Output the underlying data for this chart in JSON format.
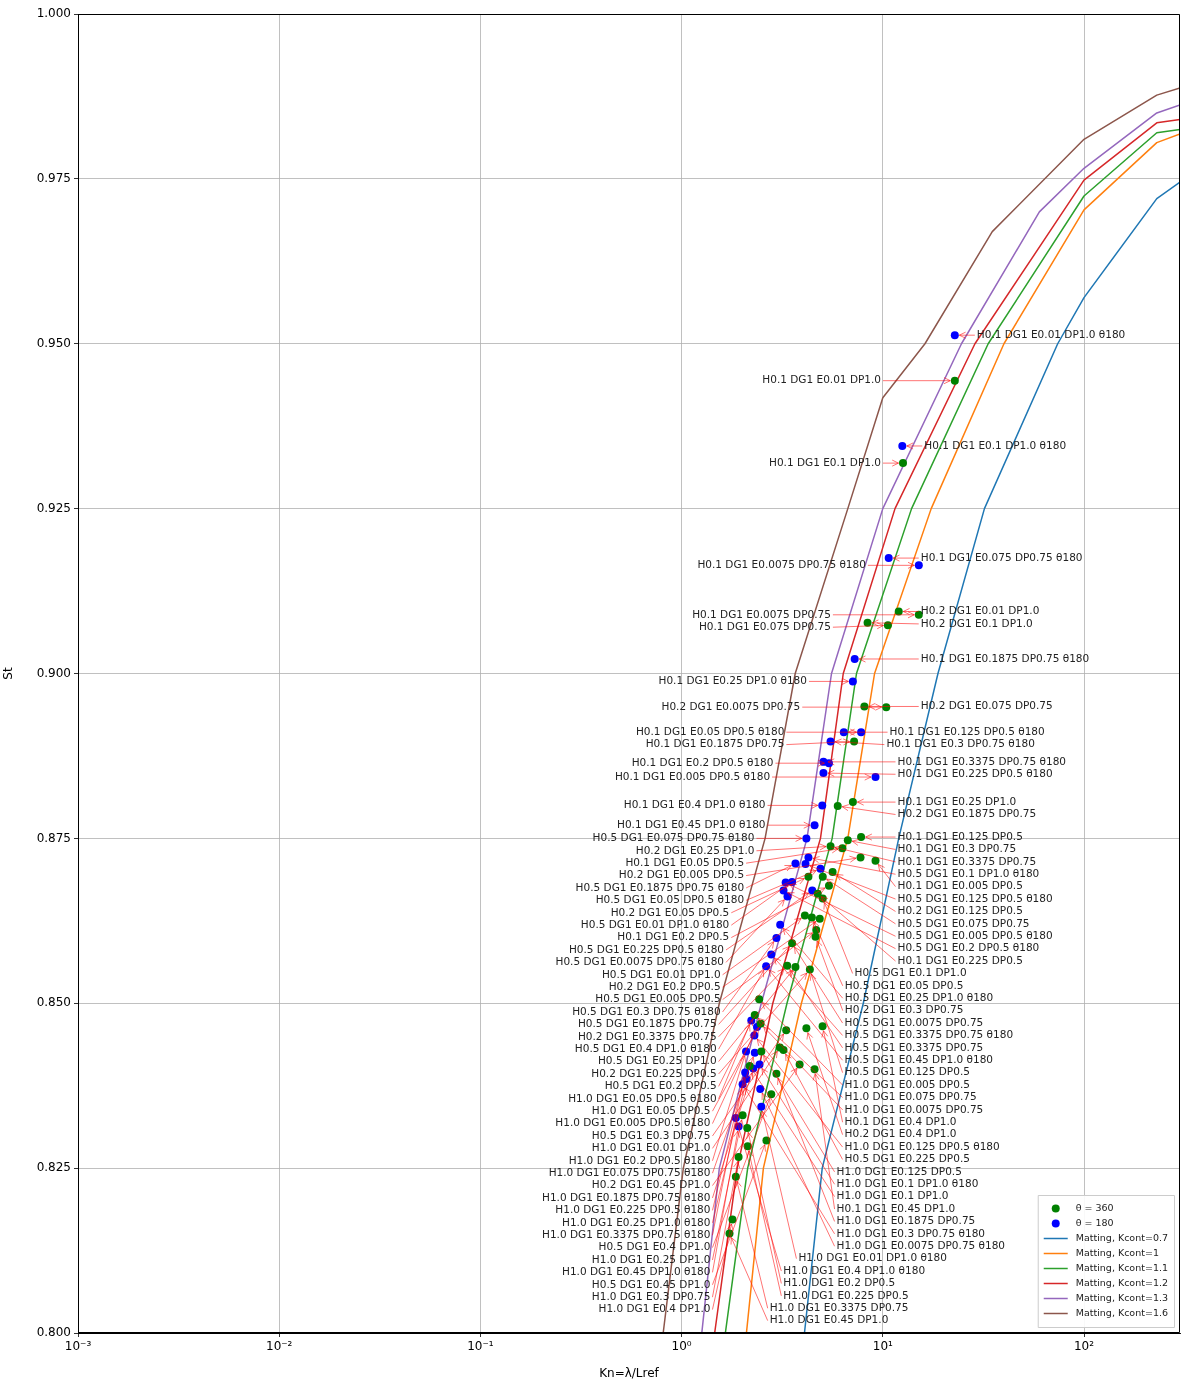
{
  "chart_data": {
    "type": "scatter",
    "xlabel": "Kn=λ/Lref",
    "ylabel": "St",
    "log": "x",
    "grid": true,
    "legend": "bottom right",
    "xlim": [
      0.001,
      300
    ],
    "ylim": [
      0.8,
      1.0
    ],
    "xticks": [
      {
        "value": 0.001,
        "label": "10⁻³"
      },
      {
        "value": 0.01,
        "label": "10⁻²"
      },
      {
        "value": 0.1,
        "label": "10⁻¹"
      },
      {
        "value": 1,
        "label": "10⁰"
      },
      {
        "value": 10,
        "label": "10¹"
      },
      {
        "value": 100,
        "label": "10²"
      }
    ],
    "yticks": [
      {
        "value": 0.8,
        "label": "0.800"
      },
      {
        "value": 0.825,
        "label": "0.825"
      },
      {
        "value": 0.85,
        "label": "0.850"
      },
      {
        "value": 0.875,
        "label": "0.875"
      },
      {
        "value": 0.9,
        "label": "0.900"
      },
      {
        "value": 0.925,
        "label": "0.925"
      },
      {
        "value": 0.95,
        "label": "0.950"
      },
      {
        "value": 0.975,
        "label": "0.975"
      },
      {
        "value": 1.0,
        "label": "1.000"
      }
    ],
    "series": [
      {
        "name": "θ = 360",
        "marker": "circle",
        "color": "#008000",
        "x": [
          22.8,
          12.6,
          12.0,
          15.1,
          8.4,
          10.6,
          8.1,
          10.4,
          7.2,
          5.97,
          7.1,
          5.5,
          7.8,
          6.7,
          6.3,
          7.75,
          9.2,
          5.63,
          4.27,
          5.03,
          5.4,
          4.75,
          5.03,
          4.1,
          4.44,
          4.86,
          4.67,
          4.63,
          3.54,
          3.35,
          3.68,
          4.34,
          2.43,
          2.31,
          2.47,
          3.31,
          4.17,
          5.02,
          2.49,
          3.08,
          3.21,
          3.86,
          4.58,
          2.18,
          2.96,
          2.79,
          2.01,
          2.12,
          2.64,
          2.13,
          1.92,
          1.86,
          1.79,
          1.73
        ],
        "values": [
          0.9444,
          0.9319,
          0.9094,
          0.9089,
          0.9077,
          0.9073,
          0.895,
          0.8949,
          0.8897,
          0.8799,
          0.8805,
          0.8738,
          0.8752,
          0.8747,
          0.8735,
          0.8721,
          0.8716,
          0.8699,
          0.8692,
          0.8692,
          0.8678,
          0.8666,
          0.8659,
          0.8633,
          0.863,
          0.8628,
          0.8611,
          0.8601,
          0.8591,
          0.8557,
          0.8555,
          0.8551,
          0.8506,
          0.8482,
          0.8469,
          0.8459,
          0.8462,
          0.8465,
          0.8427,
          0.8433,
          0.8429,
          0.8407,
          0.84,
          0.8405,
          0.8393,
          0.8362,
          0.833,
          0.8311,
          0.8292,
          0.8283,
          0.8267,
          0.8237,
          0.8172,
          0.8151
        ]
      },
      {
        "name": "θ = 180",
        "marker": "circle",
        "color": "#0000ff",
        "x": [
          22.8,
          12.5,
          10.7,
          15.1,
          7.25,
          7.1,
          6.4,
          7.8,
          5.5,
          5.07,
          5.4,
          5.07,
          9.2,
          5.0,
          4.58,
          4.17,
          4.27,
          3.68,
          4.13,
          4.9,
          3.54,
          3.29,
          3.21,
          3.36,
          4.46,
          3.09,
          2.96,
          2.79,
          2.63,
          2.22,
          2.37,
          2.3,
          2.09,
          2.31,
          2.44,
          2.27,
          2.07,
          2.1,
          2.01,
          2.46,
          2.49,
          1.86,
          1.92
        ],
        "values": [
          0.9513,
          0.9345,
          0.9175,
          0.9164,
          0.9022,
          0.8988,
          0.8911,
          0.8911,
          0.8897,
          0.8866,
          0.8864,
          0.8849,
          0.8843,
          0.88,
          0.877,
          0.875,
          0.8721,
          0.8712,
          0.8711,
          0.8704,
          0.8684,
          0.8683,
          0.8671,
          0.8662,
          0.8671,
          0.8619,
          0.8599,
          0.8574,
          0.8556,
          0.8474,
          0.8464,
          0.8451,
          0.8427,
          0.8425,
          0.8407,
          0.8401,
          0.8395,
          0.8385,
          0.8377,
          0.837,
          0.8343,
          0.8326,
          0.8313
        ]
      },
      {
        "name": "Matting, Kcont=0.7",
        "type": "line",
        "color": "#1f77b4",
        "x": [
          4.08,
          5.0,
          8.0,
          12,
          18.8,
          32,
          74,
          100,
          230,
          300
        ],
        "values": [
          0.8,
          0.825,
          0.85,
          0.875,
          0.9,
          0.925,
          0.95,
          0.957,
          0.972,
          0.9745
        ]
      },
      {
        "name": "Matting, Kcont=1",
        "type": "line",
        "color": "#ff7f0e",
        "x": [
          2.1,
          2.55,
          3.94,
          6.7,
          9.1,
          17.4,
          40,
          100,
          230,
          300
        ],
        "values": [
          0.8,
          0.825,
          0.85,
          0.875,
          0.9,
          0.925,
          0.95,
          0.9703,
          0.9805,
          0.9818
        ]
      },
      {
        "name": "Matting, Kcont=1.1",
        "type": "line",
        "color": "#2ca02c",
        "x": [
          1.65,
          2.13,
          3.34,
          5.6,
          7.4,
          13.9,
          33.4,
          100,
          230,
          300
        ],
        "values": [
          0.8,
          0.825,
          0.85,
          0.875,
          0.9,
          0.925,
          0.95,
          0.9724,
          0.982,
          0.9825
        ]
      },
      {
        "name": "Matting, Kcont=1.2",
        "type": "line",
        "color": "#d62728",
        "x": [
          1.46,
          1.89,
          2.84,
          4.9,
          6.36,
          11.5,
          28.7,
          100,
          230,
          300
        ],
        "values": [
          0.8,
          0.825,
          0.85,
          0.875,
          0.9,
          0.925,
          0.95,
          0.9748,
          0.9835,
          0.984
        ]
      },
      {
        "name": "Matting, Kcont=1.3",
        "type": "line",
        "color": "#9467bd",
        "x": [
          1.26,
          1.54,
          2.49,
          4.2,
          5.56,
          10,
          24.6,
          60,
          100,
          230,
          300
        ],
        "values": [
          0.8,
          0.825,
          0.85,
          0.875,
          0.9,
          0.925,
          0.95,
          0.97,
          0.9766,
          0.985,
          0.9862
        ]
      },
      {
        "name": "Matting, Kcont=1.6",
        "type": "line",
        "color": "#8c564b",
        "x": [
          0.81,
          1.02,
          1.54,
          2.6,
          3.67,
          6.7,
          10,
          16.2,
          35,
          100,
          230,
          300
        ],
        "values": [
          0.8,
          0.825,
          0.85,
          0.875,
          0.9,
          0.925,
          0.9418,
          0.95,
          0.967,
          0.981,
          0.9877,
          0.9888
        ]
      }
    ],
    "annotations": [
      {
        "text": "H0.1 DG1 E0.01 DP1.0 θ180",
        "x": 22.8,
        "y": 0.9513
      },
      {
        "text": "H0.1 DG1 E0.01 DP1.0",
        "x": 22.8,
        "y": 0.9444
      },
      {
        "text": "H0.1 DG1 E0.1 DP1.0 θ180",
        "x": 12.5,
        "y": 0.9345
      },
      {
        "text": "H0.1 DG1 E0.1 DP1.0",
        "x": 12.6,
        "y": 0.9319
      },
      {
        "text": "H0.1 DG1 E0.075 DP0.75 θ180",
        "x": 10.7,
        "y": 0.9175
      },
      {
        "text": "H0.1 DG1 E0.0075 DP0.75 θ180",
        "x": 15.1,
        "y": 0.9164
      },
      {
        "text": "H0.2 DG1 E0.01 DP1.0",
        "x": 12.0,
        "y": 0.9094
      },
      {
        "text": "H0.1 DG1 E0.0075 DP0.75",
        "x": 15.1,
        "y": 0.9089
      },
      {
        "text": "H0.2 DG1 E0.1 DP1.0",
        "x": 8.4,
        "y": 0.9077
      },
      {
        "text": "H0.1 DG1 E0.075 DP0.75",
        "x": 10.6,
        "y": 0.9073
      },
      {
        "text": "H0.1 DG1 E0.1875 DP0.75 θ180",
        "x": 7.25,
        "y": 0.9022
      },
      {
        "text": "H0.1 DG1 E0.25 DP1.0 θ180",
        "x": 7.1,
        "y": 0.8988
      },
      {
        "text": "H0.2 DG1 E0.075 DP0.75",
        "x": 8.1,
        "y": 0.895
      },
      {
        "text": "H0.2 DG1 E0.0075 DP0.75",
        "x": 10.4,
        "y": 0.8949
      },
      {
        "text": "H0.1 DG1 E0.125 DP0.5 θ180",
        "x": 6.4,
        "y": 0.8911
      },
      {
        "text": "H0.1 DG1 E0.05 DP0.5 θ180",
        "x": 7.8,
        "y": 0.8911
      },
      {
        "text": "H0.1 DG1 E0.3 DP0.75 θ180",
        "x": 5.5,
        "y": 0.8897
      },
      {
        "text": "H0.1 DG1 E0.1875 DP0.75",
        "x": 7.2,
        "y": 0.8897
      },
      {
        "text": "H0.1 DG1 E0.3375 DP0.75 θ180",
        "x": 5.07,
        "y": 0.8866
      },
      {
        "text": "H0.1 DG1 E0.2 DP0.5 θ180",
        "x": 5.4,
        "y": 0.8864
      },
      {
        "text": "H0.1 DG1 E0.225 DP0.5 θ180",
        "x": 5.07,
        "y": 0.8849
      },
      {
        "text": "H0.1 DG1 E0.005 DP0.5 θ180",
        "x": 9.2,
        "y": 0.8843
      },
      {
        "text": "H0.2 DG1 E0.1875 DP0.75",
        "x": 5.97,
        "y": 0.8799
      },
      {
        "text": "H0.1 DG1 E0.25 DP1.0",
        "x": 7.1,
        "y": 0.8805
      },
      {
        "text": "H0.1 DG1 E0.4 DP1.0 θ180",
        "x": 5.0,
        "y": 0.88
      },
      {
        "text": "H0.1 DG1 E0.45 DP1.0 θ180",
        "x": 4.58,
        "y": 0.877
      },
      {
        "text": "H0.2 DG1 E0.25 DP1.0",
        "x": 5.5,
        "y": 0.8738
      },
      {
        "text": "H0.1 DG1 E0.3 DP0.75",
        "x": 6.7,
        "y": 0.8747
      },
      {
        "text": "H0.1 DG1 E0.125 DP0.5",
        "x": 7.8,
        "y": 0.8752
      },
      {
        "text": "H0.5 DG1 E0.075 DP0.75 θ180",
        "x": 4.17,
        "y": 0.875
      },
      {
        "text": "H0.1 DG1 E0.05 DP0.5",
        "x": 6.3,
        "y": 0.8735
      },
      {
        "text": "H0.1 DG1 E0.3375 DP0.75",
        "x": 5.5,
        "y": 0.8738
      },
      {
        "text": "H0.2 DG1 E0.005 DP0.5",
        "x": 7.75,
        "y": 0.8721
      },
      {
        "text": "H0.1 DG1 E0.005 DP0.5",
        "x": 9.2,
        "y": 0.8716
      },
      {
        "text": "H0.5 DG1 E0.1 DP1.0 θ180",
        "x": 4.27,
        "y": 0.8721
      },
      {
        "text": "H0.5 DG1 E0.1875 DP0.75 θ180",
        "x": 3.68,
        "y": 0.8712
      },
      {
        "text": "H0.5 DG1 E0.125 DP0.5 θ180",
        "x": 4.13,
        "y": 0.8711
      },
      {
        "text": "H0.5 DG1 E0.05 DP0.5 θ180",
        "x": 4.9,
        "y": 0.8704
      },
      {
        "text": "H0.2 DG1 E0.125 DP0.5",
        "x": 5.63,
        "y": 0.8699
      },
      {
        "text": "H0.2 DG1 E0.05 DP0.5",
        "x": 4.27,
        "y": 0.8692
      },
      {
        "text": "H0.5 DG1 E0.075 DP0.75",
        "x": 5.03,
        "y": 0.8692
      },
      {
        "text": "H0.5 DG1 E0.01 DP1.0 θ180",
        "x": 3.54,
        "y": 0.8684
      },
      {
        "text": "H0.5 DG1 E0.005 DP0.5 θ180",
        "x": 3.29,
        "y": 0.8683
      },
      {
        "text": "H0.1 DG1 E0.2 DP0.5",
        "x": 5.4,
        "y": 0.8678
      },
      {
        "text": "H0.5 DG1 E0.2 DP0.5 θ180",
        "x": 3.21,
        "y": 0.8671
      },
      {
        "text": "H0.5 DG1 E0.225 DP0.5 θ180",
        "x": 4.46,
        "y": 0.8671
      },
      {
        "text": "H0.1 DG1 E0.225 DP0.5",
        "x": 4.75,
        "y": 0.8666
      },
      {
        "text": "H0.5 DG1 E0.0075 DP0.75 θ180",
        "x": 3.36,
        "y": 0.8662
      },
      {
        "text": "H0.5 DG1 E0.1 DP1.0",
        "x": 5.03,
        "y": 0.8659
      },
      {
        "text": "H0.5 DG1 E0.01 DP1.0",
        "x": 4.1,
        "y": 0.8633
      },
      {
        "text": "H0.5 DG1 E0.05 DP0.5",
        "x": 4.44,
        "y": 0.863
      },
      {
        "text": "H0.2 DG1 E0.2 DP0.5",
        "x": 4.86,
        "y": 0.8628
      },
      {
        "text": "H0.5 DG1 E0.25 DP1.0 θ180",
        "x": 3.09,
        "y": 0.8619
      },
      {
        "text": "H0.5 DG1 E0.005 DP0.5",
        "x": 4.67,
        "y": 0.8611
      },
      {
        "text": "H0.2 DG1 E0.3 DP0.75",
        "x": 4.63,
        "y": 0.8601
      },
      {
        "text": "H0.5 DG1 E0.3 DP0.75 θ180",
        "x": 2.96,
        "y": 0.8599
      },
      {
        "text": "H0.5 DG1 E0.0075 DP0.75",
        "x": 3.54,
        "y": 0.8591
      },
      {
        "text": "H0.5 DG1 E0.1875 DP0.75",
        "x": 3.54,
        "y": 0.8591
      },
      {
        "text": "H0.5 DG1 E0.3375 DP0.75 θ180",
        "x": 2.79,
        "y": 0.8574
      },
      {
        "text": "H0.2 DG1 E0.3375 DP0.75",
        "x": 3.35,
        "y": 0.8557
      },
      {
        "text": "H0.5 DG1 E0.3375 DP0.75",
        "x": 3.35,
        "y": 0.8557
      },
      {
        "text": "H0.5 DG1 E0.4 DP1.0 θ180",
        "x": 2.63,
        "y": 0.8556
      },
      {
        "text": "H0.5 DG1 E0.45 DP1.0 θ180",
        "x": 2.63,
        "y": 0.8556
      },
      {
        "text": "H0.5 DG1 E0.25 DP1.0",
        "x": 3.68,
        "y": 0.8555
      },
      {
        "text": "H0.5 DG1 E0.125 DP0.5",
        "x": 4.34,
        "y": 0.8551
      },
      {
        "text": "H0.2 DG1 E0.225 DP0.5",
        "x": 4.34,
        "y": 0.8551
      },
      {
        "text": "H1.0 DG1 E0.005 DP0.5",
        "x": 2.43,
        "y": 0.8506
      },
      {
        "text": "H0.5 DG1 E0.2 DP0.5",
        "x": 2.31,
        "y": 0.8482
      },
      {
        "text": "H1.0 DG1 E0.075 DP0.75",
        "x": 2.31,
        "y": 0.8482
      },
      {
        "text": "H1.0 DG1 E0.05 DP0.5 θ180",
        "x": 2.22,
        "y": 0.8474
      },
      {
        "text": "H1.0 DG1 E0.0075 DP0.75",
        "x": 2.47,
        "y": 0.8469
      },
      {
        "text": "H1.0 DG1 E0.05 DP0.5",
        "x": 2.47,
        "y": 0.8469
      },
      {
        "text": "H0.1 DG1 E0.4 DP1.0",
        "x": 5.02,
        "y": 0.8465
      },
      {
        "text": "H1.0 DG1 E0.005 DP0.5 θ180",
        "x": 2.37,
        "y": 0.8464
      },
      {
        "text": "H0.2 DG1 E0.4 DP1.0",
        "x": 4.17,
        "y": 0.8462
      },
      {
        "text": "H0.5 DG1 E0.3 DP0.75",
        "x": 3.31,
        "y": 0.8459
      },
      {
        "text": "H1.0 DG1 E0.125 DP0.5 θ180",
        "x": 2.3,
        "y": 0.8451
      },
      {
        "text": "H1.0 DG1 E0.01 DP1.0",
        "x": 3.08,
        "y": 0.8433
      },
      {
        "text": "H0.5 DG1 E0.225 DP0.5",
        "x": 3.21,
        "y": 0.8429
      },
      {
        "text": "H1.0 DG1 E0.2 DP0.5 θ180",
        "x": 2.09,
        "y": 0.8427
      },
      {
        "text": "H1.0 DG1 E0.125 DP0.5",
        "x": 2.49,
        "y": 0.8427
      },
      {
        "text": "H1.0 DG1 E0.075 DP0.75 θ180",
        "x": 2.31,
        "y": 0.8425
      },
      {
        "text": "H1.0 DG1 E0.1 DP1.0 θ180",
        "x": 2.44,
        "y": 0.8407
      },
      {
        "text": "H0.2 DG1 E0.45 DP1.0",
        "x": 3.86,
        "y": 0.8407
      },
      {
        "text": "H1.0 DG1 E0.1 DP1.0",
        "x": 2.18,
        "y": 0.8405
      },
      {
        "text": "H1.0 DG1 E0.1875 DP0.75 θ180",
        "x": 2.27,
        "y": 0.8401
      },
      {
        "text": "H0.1 DG1 E0.45 DP1.0",
        "x": 4.58,
        "y": 0.84
      },
      {
        "text": "H1.0 DG1 E0.225 DP0.5 θ180",
        "x": 2.07,
        "y": 0.8395
      },
      {
        "text": "H1.0 DG1 E0.1875 DP0.75",
        "x": 2.96,
        "y": 0.8393
      },
      {
        "text": "H1.0 DG1 E0.25 DP1.0 θ180",
        "x": 2.1,
        "y": 0.8385
      },
      {
        "text": "H1.0 DG1 E0.3 DP0.75 θ180",
        "x": 2.01,
        "y": 0.8377
      },
      {
        "text": "H1.0 DG1 E0.3375 DP0.75 θ180",
        "x": 2.01,
        "y": 0.8377
      },
      {
        "text": "H1.0 DG1 E0.0075 DP0.75 θ180",
        "x": 2.46,
        "y": 0.837
      },
      {
        "text": "H0.5 DG1 E0.4 DP1.0",
        "x": 2.79,
        "y": 0.8362
      },
      {
        "text": "H1.0 DG1 E0.01 DP1.0 θ180",
        "x": 2.49,
        "y": 0.8343
      },
      {
        "text": "H1.0 DG1 E0.25 DP1.0",
        "x": 2.01,
        "y": 0.833
      },
      {
        "text": "H1.0 DG1 E0.4 DP1.0 θ180",
        "x": 1.86,
        "y": 0.8326
      },
      {
        "text": "H1.0 DG1 E0.45 DP1.0 θ180",
        "x": 1.92,
        "y": 0.8313
      },
      {
        "text": "H1.0 DG1 E0.2 DP0.5",
        "x": 2.12,
        "y": 0.8311
      },
      {
        "text": "H0.5 DG1 E0.45 DP1.0",
        "x": 2.64,
        "y": 0.8292
      },
      {
        "text": "H1.0 DG1 E0.225 DP0.5",
        "x": 2.13,
        "y": 0.8283
      },
      {
        "text": "H1.0 DG1 E0.3 DP0.75",
        "x": 1.92,
        "y": 0.8267
      },
      {
        "text": "H1.0 DG1 E0.3375 DP0.75",
        "x": 1.86,
        "y": 0.8237
      },
      {
        "text": "H1.0 DG1 E0.4 DP1.0",
        "x": 1.79,
        "y": 0.8172
      },
      {
        "text": "H1.0 DG1 E0.45 DP1.0",
        "x": 1.73,
        "y": 0.8151
      }
    ]
  }
}
